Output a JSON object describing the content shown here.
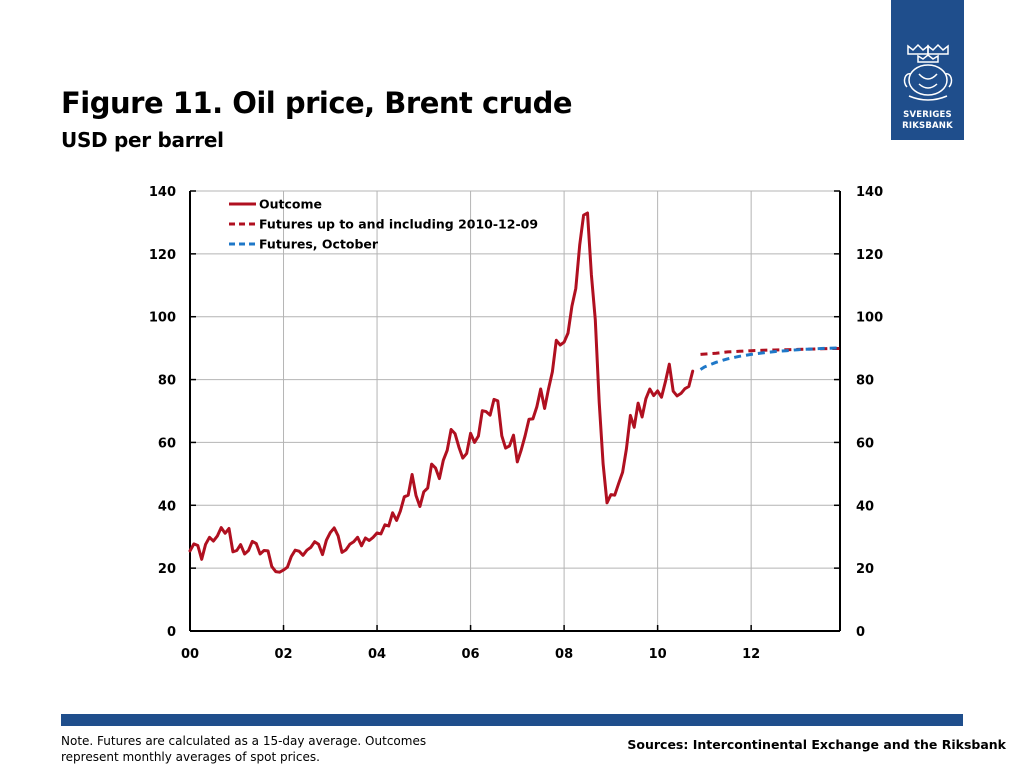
{
  "header": {
    "title": "Figure 11. Oil price, Brent crude",
    "subtitle": "USD per barrel"
  },
  "logo": {
    "line1": "SVERIGES",
    "line2": "RIKSBANK",
    "icon": "riksbank-crest-icon"
  },
  "footer": {
    "note": "Note. Futures are calculated as a 15-day average. Outcomes represent monthly averages of spot prices.",
    "sources": "Sources: Intercontinental Exchange and the Riksbank"
  },
  "colors": {
    "brand_blue": "#1f4e8c",
    "outcome": "#b01020",
    "futures_dec": "#b01020",
    "futures_oct": "#1f78c8"
  },
  "chart_data": {
    "type": "line",
    "title": "",
    "xlabel": "",
    "ylabel": "",
    "xlim": [
      2000,
      2013.9
    ],
    "ylim": [
      0,
      140
    ],
    "y_ticks": [
      0,
      20,
      40,
      60,
      80,
      100,
      120,
      140
    ],
    "x_ticks": [
      {
        "value": 2000,
        "label": "00"
      },
      {
        "value": 2002,
        "label": "02"
      },
      {
        "value": 2004,
        "label": "04"
      },
      {
        "value": 2006,
        "label": "06"
      },
      {
        "value": 2008,
        "label": "08"
      },
      {
        "value": 2010,
        "label": "10"
      },
      {
        "value": 2012,
        "label": "12"
      }
    ],
    "grid": true,
    "legend_position": "top-left",
    "series": [
      {
        "name": "Outcome",
        "style": "solid",
        "x": [
          2000.0,
          2000.083,
          2000.167,
          2000.25,
          2000.333,
          2000.417,
          2000.5,
          2000.583,
          2000.667,
          2000.75,
          2000.833,
          2000.917,
          2001.0,
          2001.083,
          2001.167,
          2001.25,
          2001.333,
          2001.417,
          2001.5,
          2001.583,
          2001.667,
          2001.75,
          2001.833,
          2001.917,
          2002.0,
          2002.083,
          2002.167,
          2002.25,
          2002.333,
          2002.417,
          2002.5,
          2002.583,
          2002.667,
          2002.75,
          2002.833,
          2002.917,
          2003.0,
          2003.083,
          2003.167,
          2003.25,
          2003.333,
          2003.417,
          2003.5,
          2003.583,
          2003.667,
          2003.75,
          2003.833,
          2003.917,
          2004.0,
          2004.083,
          2004.167,
          2004.25,
          2004.333,
          2004.417,
          2004.5,
          2004.583,
          2004.667,
          2004.75,
          2004.833,
          2004.917,
          2005.0,
          2005.083,
          2005.167,
          2005.25,
          2005.333,
          2005.417,
          2005.5,
          2005.583,
          2005.667,
          2005.75,
          2005.833,
          2005.917,
          2006.0,
          2006.083,
          2006.167,
          2006.25,
          2006.333,
          2006.417,
          2006.5,
          2006.583,
          2006.667,
          2006.75,
          2006.833,
          2006.917,
          2007.0,
          2007.083,
          2007.167,
          2007.25,
          2007.333,
          2007.417,
          2007.5,
          2007.583,
          2007.667,
          2007.75,
          2007.833,
          2007.917,
          2008.0,
          2008.083,
          2008.167,
          2008.25,
          2008.333,
          2008.417,
          2008.5,
          2008.583,
          2008.667,
          2008.75,
          2008.833,
          2008.917,
          2009.0,
          2009.083,
          2009.167,
          2009.25,
          2009.333,
          2009.417,
          2009.5,
          2009.583,
          2009.667,
          2009.75,
          2009.833,
          2009.917,
          2010.0,
          2010.083,
          2010.167,
          2010.25,
          2010.333,
          2010.417,
          2010.5,
          2010.583,
          2010.667,
          2010.75
        ],
        "values": [
          25.5,
          27.7,
          27.2,
          22.8,
          27.6,
          29.8,
          28.6,
          30.2,
          32.9,
          31.1,
          32.6,
          25.2,
          25.6,
          27.5,
          24.5,
          25.6,
          28.5,
          27.8,
          24.5,
          25.6,
          25.5,
          20.5,
          18.9,
          18.7,
          19.4,
          20.3,
          23.7,
          25.7,
          25.4,
          24.1,
          25.7,
          26.6,
          28.4,
          27.6,
          24.3,
          28.9,
          31.3,
          32.8,
          30.3,
          25.0,
          25.8,
          27.6,
          28.4,
          29.8,
          27.1,
          29.6,
          28.8,
          29.8,
          31.2,
          30.9,
          33.8,
          33.4,
          37.6,
          35.2,
          38.2,
          42.7,
          43.2,
          49.8,
          43.1,
          39.6,
          44.3,
          45.5,
          53.1,
          51.9,
          48.5,
          54.3,
          57.5,
          64.1,
          62.8,
          58.5,
          55.0,
          56.5,
          62.9,
          60.0,
          62.0,
          70.1,
          69.8,
          68.7,
          73.7,
          73.2,
          62.1,
          58.2,
          58.9,
          62.3,
          53.8,
          57.6,
          62.1,
          67.4,
          67.5,
          71.3,
          77.0,
          70.8,
          77.0,
          82.5,
          92.5,
          91.0,
          91.9,
          94.8,
          103.3,
          109.0,
          122.8,
          132.3,
          133.0,
          113.3,
          99.0,
          72.8,
          53.2,
          40.8,
          43.4,
          43.2,
          47.0,
          50.5,
          57.9,
          68.6,
          64.8,
          72.5,
          68.1,
          73.9,
          77.0,
          74.9,
          76.4,
          74.4,
          79.3,
          84.9,
          76.3,
          74.8,
          75.6,
          77.1,
          77.8,
          82.7
        ]
      },
      {
        "name": "Futures up to and including 2010-12-09",
        "style": "dashed",
        "x": [
          2010.917,
          2011.25,
          2011.5,
          2011.75,
          2012.0,
          2012.25,
          2012.5,
          2012.75,
          2013.0,
          2013.25,
          2013.5,
          2013.75,
          2013.917
        ],
        "values": [
          88.0,
          88.4,
          88.8,
          89.0,
          89.2,
          89.3,
          89.4,
          89.5,
          89.6,
          89.7,
          89.8,
          89.9,
          89.9
        ]
      },
      {
        "name": "Futures, October",
        "style": "dashed",
        "x": [
          2010.917,
          2011.0,
          2011.25,
          2011.5,
          2011.75,
          2012.0,
          2012.25,
          2012.5,
          2012.75,
          2013.0,
          2013.25,
          2013.5,
          2013.75,
          2013.917
        ],
        "values": [
          83.2,
          84.0,
          85.5,
          86.6,
          87.4,
          88.0,
          88.5,
          88.9,
          89.2,
          89.5,
          89.7,
          89.9,
          90.0,
          90.1
        ]
      }
    ]
  }
}
